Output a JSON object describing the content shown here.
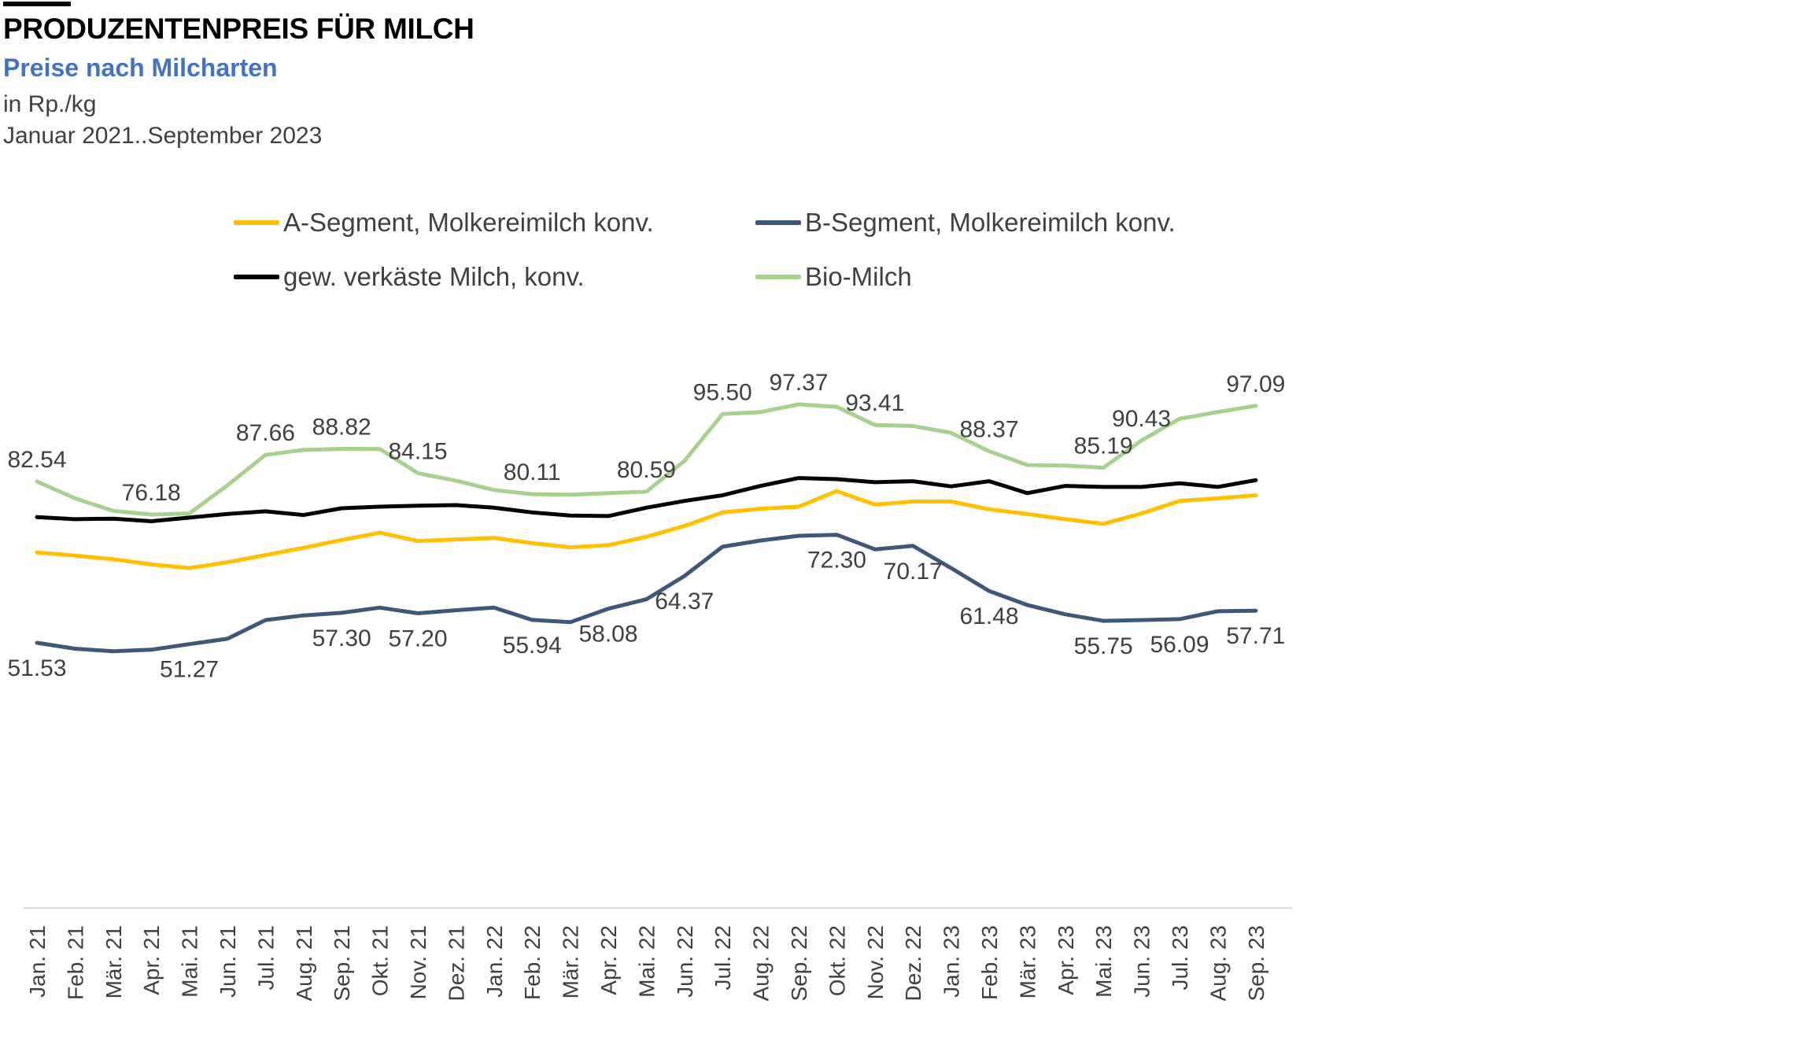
{
  "header": {
    "title": "PRODUZENTENPREIS FÜR MILCH",
    "subtitle": "Preise nach Milcharten",
    "unit": "in Rp./kg",
    "period": "Januar 2021..September 2023",
    "subtitle_color": "#4472C4",
    "text_color": "#404040",
    "accent_bar_color": "#000000"
  },
  "legend": [
    {
      "label": "A-Segment, Molkereimilch konv.",
      "color": "#FFC000"
    },
    {
      "label": "B-Segment, Molkereimilch konv.",
      "color": "#3F5878"
    },
    {
      "label": "gew. verkäste Milch, konv.",
      "color": "#000000"
    },
    {
      "label": "Bio-Milch",
      "color": "#A9D18E"
    }
  ],
  "chart_data": {
    "type": "line",
    "title": "Produzentenpreis für Milch, Preise nach Milcharten",
    "ylabel": "Rp./kg",
    "xlabel": "",
    "grid": false,
    "legend_position": "top-center",
    "axis_line_color": "#D9D9D9",
    "label_text_color": "#404040",
    "x": [
      "Jan. 21",
      "Feb. 21",
      "Mär. 21",
      "Apr. 21",
      "Mai. 21",
      "Jun. 21",
      "Jul. 21",
      "Aug. 21",
      "Sep. 21",
      "Okt. 21",
      "Nov. 21",
      "Dez. 21",
      "Jan. 22",
      "Feb. 22",
      "Mär. 22",
      "Apr. 22",
      "Mai. 22",
      "Jun. 22",
      "Jul. 22",
      "Aug. 22",
      "Sep. 22",
      "Okt. 22",
      "Nov. 22",
      "Dez. 22",
      "Jan. 23",
      "Feb. 23",
      "Mär. 23",
      "Apr. 23",
      "Mai. 23",
      "Jun. 23",
      "Jul. 23",
      "Aug. 23",
      "Sep. 23"
    ],
    "series": [
      {
        "id": "a-segment",
        "name": "A-Segment, Molkereimilch konv.",
        "color": "#FFC000",
        "values": [
          68.9,
          68.3,
          67.6,
          66.6,
          65.9,
          67.0,
          68.4,
          69.8,
          71.3,
          72.7,
          71.1,
          71.4,
          71.7,
          70.7,
          69.9,
          70.3,
          71.9,
          74.0,
          76.6,
          77.3,
          77.7,
          80.7,
          78.1,
          78.7,
          78.7,
          77.2,
          76.3,
          75.3,
          74.4,
          76.4,
          78.8,
          79.3,
          79.9
        ],
        "point_labels": {},
        "label_side": "above"
      },
      {
        "id": "b-segment",
        "name": "B-Segment, Molkereimilch konv.",
        "color": "#3F5878",
        "values": [
          51.53,
          50.4,
          49.9,
          50.2,
          51.27,
          52.3,
          55.9,
          56.8,
          57.3,
          58.3,
          57.2,
          57.8,
          58.3,
          55.94,
          55.5,
          58.08,
          59.9,
          64.37,
          70.0,
          71.2,
          72.1,
          72.3,
          69.5,
          70.17,
          65.9,
          61.48,
          58.8,
          57.0,
          55.75,
          55.9,
          56.09,
          57.6,
          57.71
        ],
        "point_labels": {
          "0": "51.53",
          "4": "51.27",
          "8": "57.30",
          "10": "57.20",
          "13": "55.94",
          "15": "58.08",
          "17": "64.37",
          "21": "72.30",
          "23": "70.17",
          "25": "61.48",
          "28": "55.75",
          "30": "56.09",
          "32": "57.71"
        },
        "label_side": "below"
      },
      {
        "id": "verkaeste-milch",
        "name": "gew. verkäste Milch, konv.",
        "color": "#000000",
        "values": [
          75.7,
          75.3,
          75.4,
          74.9,
          75.6,
          76.3,
          76.8,
          76.1,
          77.4,
          77.7,
          77.9,
          78.0,
          77.5,
          76.6,
          76.0,
          75.9,
          77.5,
          78.8,
          79.9,
          81.7,
          83.2,
          83.0,
          82.4,
          82.6,
          81.6,
          82.6,
          80.3,
          81.7,
          81.5,
          81.5,
          82.2,
          81.5,
          82.8
        ],
        "point_labels": {},
        "label_side": "above"
      },
      {
        "id": "bio-milch",
        "name": "Bio-Milch",
        "color": "#A9D18E",
        "values": [
          82.54,
          79.3,
          76.9,
          76.18,
          76.4,
          81.8,
          87.66,
          88.6,
          88.82,
          88.8,
          84.15,
          82.7,
          80.9,
          80.11,
          80.0,
          80.3,
          80.59,
          86.5,
          95.5,
          95.9,
          97.37,
          96.9,
          93.41,
          93.2,
          91.9,
          88.37,
          85.7,
          85.6,
          85.19,
          90.43,
          94.6,
          95.9,
          97.09
        ],
        "point_labels": {
          "0": "82.54",
          "3": "76.18",
          "6": "87.66",
          "8": "88.82",
          "10": "84.15",
          "13": "80.11",
          "16": "80.59",
          "18": "95.50",
          "20": "97.37",
          "22": "93.41",
          "25": "88.37",
          "28": "85.19",
          "29": "90.43",
          "32": "97.09"
        },
        "label_side": "above"
      }
    ]
  }
}
